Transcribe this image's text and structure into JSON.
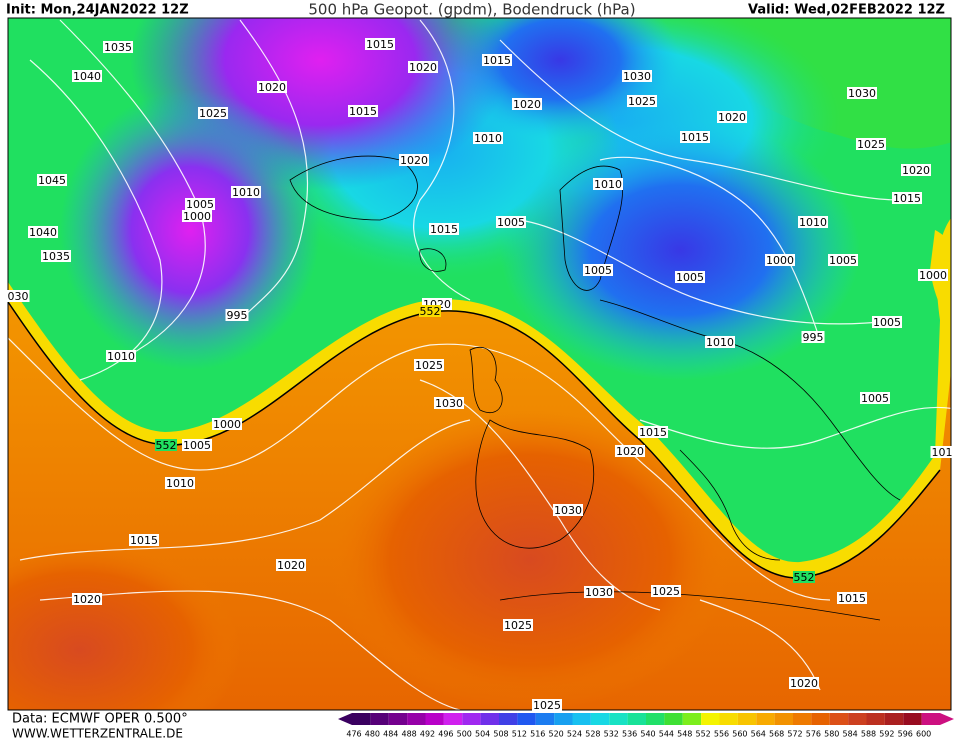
{
  "header": {
    "init": "Init: Mon,24JAN2022 12Z",
    "title": "500 hPa Geopot. (gpdm), Bodendruck (hPa)",
    "valid": "Valid: Wed,02FEB2022 12Z"
  },
  "footer": {
    "data": "Data: ECMWF OPER 0.500°",
    "site": "WWW.WETTERZENTRALE.DE"
  },
  "legend": {
    "values": [
      476,
      480,
      484,
      488,
      492,
      496,
      500,
      504,
      508,
      512,
      516,
      520,
      524,
      528,
      532,
      536,
      540,
      544,
      548,
      552,
      556,
      560,
      564,
      568,
      572,
      576,
      580,
      584,
      588,
      592,
      596,
      600
    ],
    "colors": [
      "#3a0060",
      "#560078",
      "#74008e",
      "#9600a8",
      "#b800c8",
      "#d020ee",
      "#a028f0",
      "#7030ea",
      "#4040e6",
      "#2058f0",
      "#1c7cf0",
      "#18a0f0",
      "#18c0f0",
      "#18d8e4",
      "#18e2c4",
      "#18e298",
      "#20e068",
      "#3ee034",
      "#7cee1c",
      "#f4f400",
      "#f8dc00",
      "#f8c400",
      "#f8aa00",
      "#f29200",
      "#ee7a00",
      "#e66200",
      "#dc5018",
      "#cc4020",
      "#bc3020",
      "#aa2020",
      "#980c20",
      "#cc1080"
    ]
  },
  "isobar_labels": [
    "1035",
    "1015",
    "1015",
    "1030",
    "1040",
    "1020",
    "1020",
    "1025",
    "1030",
    "1025",
    "1015",
    "1020",
    "1020",
    "1010",
    "1015",
    "1025",
    "1020",
    "1020",
    "1045",
    "1010",
    "1010",
    "1015",
    "1005",
    "1000",
    "1005",
    "1015",
    "1010",
    "1040",
    "1035",
    "1000",
    "1005",
    "1005",
    "1005",
    "1000",
    "030",
    "1020",
    "995",
    "1005",
    "1010",
    "995",
    "1010",
    "1025",
    "1030",
    "1005",
    "1000",
    "1015",
    "1005",
    "1020",
    "101",
    "1010",
    "1030",
    "1015",
    "1020",
    "1020",
    "1030",
    "1025",
    "1015",
    "1025",
    "1020",
    "1025"
  ],
  "contour_552_labels": [
    "552",
    "552",
    "552"
  ]
}
